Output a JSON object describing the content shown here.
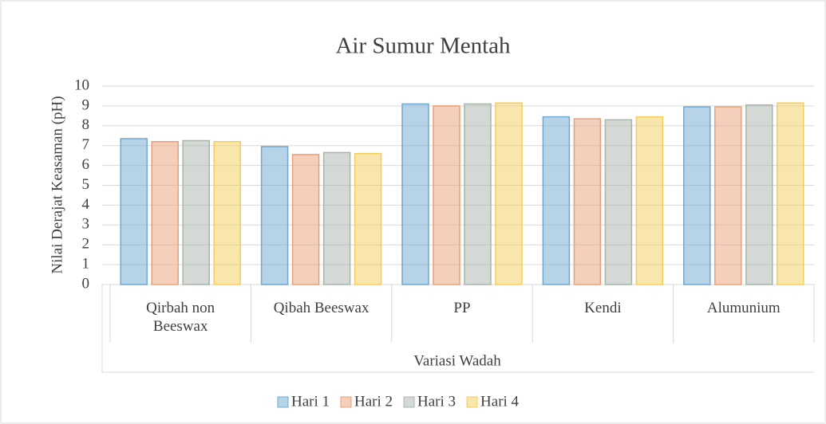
{
  "chart_data": {
    "type": "bar",
    "title": "Air Sumur Mentah",
    "y_label": "Nilai Derajat Keasaman (pH)",
    "x_label": "Variasi Wadah",
    "categories": [
      "Qirbah non Beeswax",
      "Qibah Beeswax",
      "PP",
      "Kendi",
      "Alumunium"
    ],
    "series": [
      {
        "name": "Hari 1",
        "color": "#6fa8d0",
        "values": [
          7.35,
          6.95,
          9.1,
          8.45,
          8.95
        ]
      },
      {
        "name": "Hari 2",
        "color": "#e8a07a",
        "values": [
          7.2,
          6.55,
          9.0,
          8.35,
          8.95
        ]
      },
      {
        "name": "Hari 3",
        "color": "#a9b4ab",
        "values": [
          7.25,
          6.65,
          9.1,
          8.3,
          9.05
        ]
      },
      {
        "name": "Hari 4",
        "color": "#f4ce5a",
        "values": [
          7.2,
          6.6,
          9.15,
          8.45,
          9.15
        ]
      }
    ],
    "ylim": [
      0,
      10
    ],
    "yticks": [
      0,
      1,
      2,
      3,
      4,
      5,
      6,
      7,
      8,
      9,
      10
    ],
    "grid": true,
    "legend": "bottom"
  }
}
